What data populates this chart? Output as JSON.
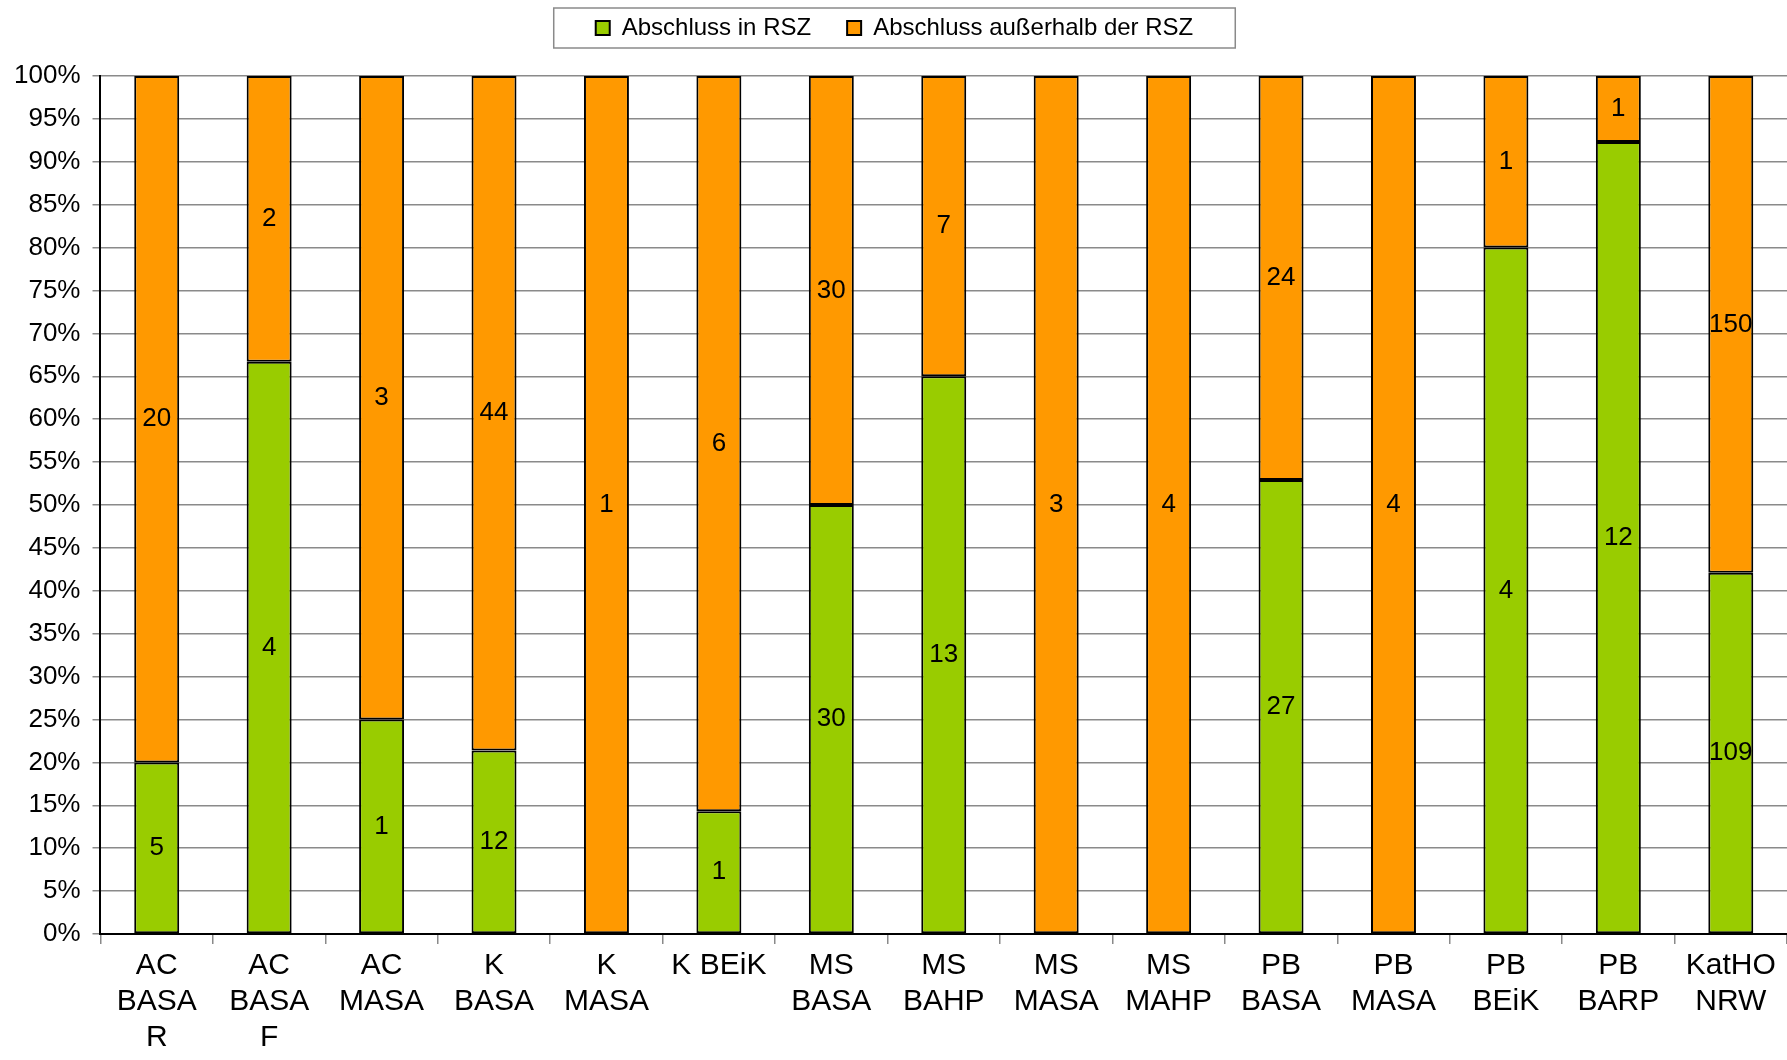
{
  "chart_data": {
    "type": "bar",
    "stacked": true,
    "grid": "y",
    "legend": "top",
    "categories": [
      "AC BASA R",
      "AC BASA F",
      "AC MASA",
      "K BASA",
      "K MASA",
      "K BEiK",
      "MS BASA",
      "MS BAHP",
      "MS MASA",
      "MS MAHP",
      "PB BASA",
      "PB MASA",
      "PB BEiK",
      "PB BARP",
      "KatHO NRW"
    ],
    "series": [
      {
        "name": "Abschluss in RSZ",
        "color": "#99cc00",
        "values": [
          20,
          66.7,
          25,
          21.4,
          0,
          14.3,
          50,
          65,
          0,
          0,
          52.9,
          0,
          80,
          92.3,
          42.1
        ]
      },
      {
        "name": "Abschluss außerhalb der RSZ",
        "color": "#ff9900",
        "values": [
          80,
          33.3,
          75,
          78.6,
          100,
          85.7,
          50,
          35,
          100,
          100,
          47.1,
          100,
          20,
          7.7,
          57.9
        ]
      }
    ],
    "ylim": [
      0,
      100
    ],
    "yticks": [
      {
        "value": 0,
        "label": "0%"
      },
      {
        "value": 5,
        "label": "5%"
      },
      {
        "value": 10,
        "label": "10%"
      },
      {
        "value": 15,
        "label": "15%"
      },
      {
        "value": 20,
        "label": "20%"
      },
      {
        "value": 25,
        "label": "25%"
      },
      {
        "value": 30,
        "label": "30%"
      },
      {
        "value": 35,
        "label": "35%"
      },
      {
        "value": 40,
        "label": "40%"
      },
      {
        "value": 45,
        "label": "45%"
      },
      {
        "value": 50,
        "label": "50%"
      },
      {
        "value": 55,
        "label": "55%"
      },
      {
        "value": 60,
        "label": "60%"
      },
      {
        "value": 65,
        "label": "65%"
      },
      {
        "value": 70,
        "label": "70%"
      },
      {
        "value": 75,
        "label": "75%"
      },
      {
        "value": 80,
        "label": "80%"
      },
      {
        "value": 85,
        "label": "85%"
      },
      {
        "value": 90,
        "label": "90%"
      },
      {
        "value": 95,
        "label": "95%"
      },
      {
        "value": 100,
        "label": "100%"
      }
    ],
    "annotations": [
      "5",
      "20",
      "4",
      "2",
      "1",
      "3",
      "12",
      "44",
      "1",
      "1",
      "6",
      "30",
      "30",
      "13",
      "7",
      "3",
      "4",
      "27",
      "24",
      "4",
      "4",
      "1",
      "12",
      "1",
      "109",
      "150"
    ]
  }
}
